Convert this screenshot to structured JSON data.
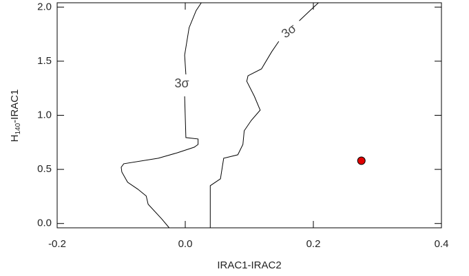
{
  "chart_data": {
    "type": "contour",
    "xlabel": "IRAC1-IRAC2",
    "ylabel": {
      "base": "H",
      "sub": "140",
      "rest": "-IRAC1"
    },
    "xlim": [
      -0.2,
      0.4
    ],
    "ylim": [
      -0.04,
      2.04
    ],
    "xticks": [
      {
        "value": -0.2,
        "label": "-0.2"
      },
      {
        "value": 0,
        "label": "0.0"
      },
      {
        "value": 0.2,
        "label": "0.2"
      },
      {
        "value": 0.4,
        "label": "0.4"
      }
    ],
    "yticks": [
      {
        "value": 0,
        "label": "0.0"
      },
      {
        "value": 0.5,
        "label": "0.5"
      },
      {
        "value": 1,
        "label": "1.0"
      },
      {
        "value": 1.5,
        "label": "1.5"
      },
      {
        "value": 2,
        "label": "2.0"
      }
    ],
    "contours": [
      {
        "label": "3σ",
        "x": [
          -0.025,
          -0.037,
          -0.058,
          -0.061,
          -0.074,
          -0.09,
          -0.099,
          -0.1,
          -0.096,
          -0.042,
          -0.012,
          0.014,
          0.02,
          0.02,
          0.001,
          -0.001,
          null,
          0.001,
          -0.001,
          0.006,
          0.017,
          0.025
        ],
        "y": [
          -0.04,
          0.044,
          0.178,
          0.254,
          0.317,
          0.381,
          0.476,
          0.52,
          0.552,
          0.603,
          0.654,
          0.705,
          0.73,
          0.781,
          0.794,
          1.175,
          null,
          1.378,
          1.556,
          1.81,
          1.968,
          2.04
        ]
      },
      {
        "label": "3σ",
        "x": [
          0.039,
          0.039,
          0.055,
          0.06,
          0.082,
          0.09,
          0.092,
          0.103,
          0.117,
          0.108,
          0.096,
          0.098,
          0.119,
          0.135,
          0.146,
          null,
          0.178,
          0.195,
          0.208
        ],
        "y": [
          -0.04,
          0.349,
          0.413,
          0.603,
          0.635,
          0.73,
          0.857,
          0.952,
          1.048,
          1.175,
          1.314,
          1.365,
          1.429,
          1.587,
          1.683,
          null,
          1.873,
          1.968,
          2.04
        ]
      }
    ],
    "points": {
      "color": "#e00000",
      "x": [
        0.275
      ],
      "y": [
        0.58
      ]
    }
  }
}
